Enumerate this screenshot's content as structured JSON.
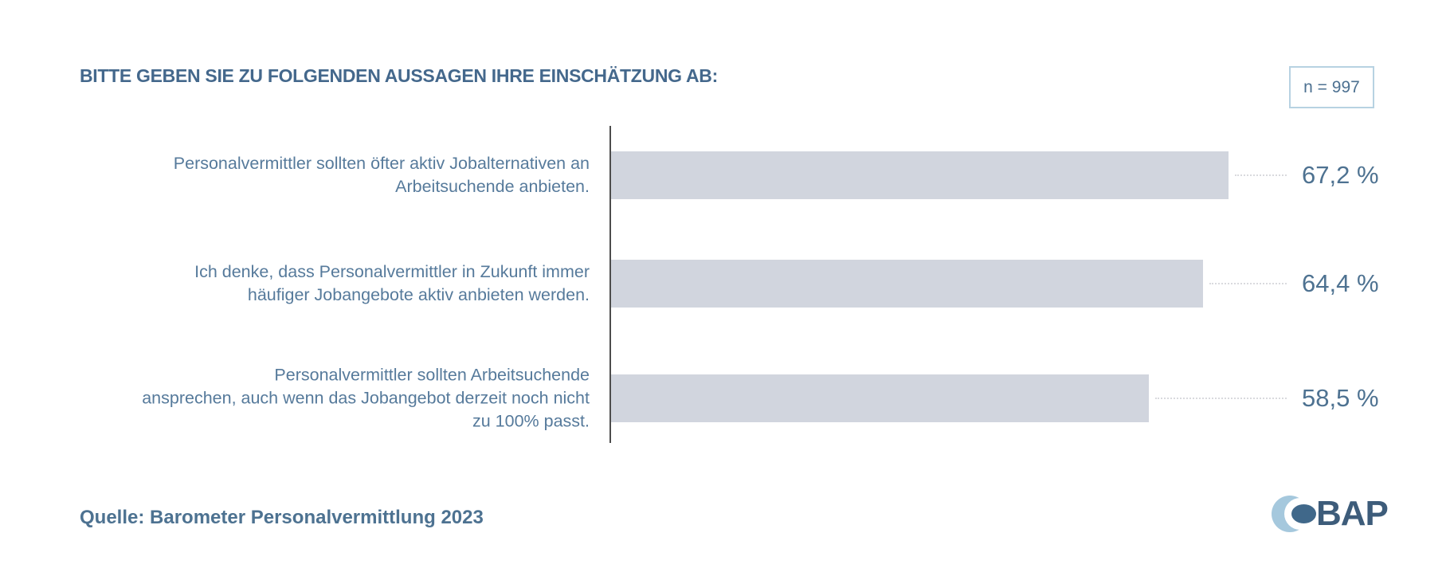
{
  "header": {
    "title": "BITTE GEBEN SIE ZU FOLGENDEN AUSSAGEN IHRE EINSCHÄTZUNG AB:",
    "sample_size": "n = 997"
  },
  "chart_data": {
    "type": "bar",
    "orientation": "horizontal",
    "title": "BITTE GEBEN SIE ZU FOLGENDEN AUSSAGEN IHRE EINSCHÄTZUNG AB:",
    "sample_size_note": "n = 997",
    "categories": [
      "Personalvermittler sollten öfter aktiv Jobalternativen an Arbeitsuchende anbieten.",
      "Ich denke, dass Personalvermittler in Zukunft immer häufiger Jobangebote aktiv anbieten werden.",
      "Personalvermittler sollten Arbeitsuchende ansprechen, auch wenn das Jobangebot derzeit noch nicht zu 100% passt."
    ],
    "label_lines": [
      [
        "Personalvermittler sollten öfter aktiv Jobalternativen an",
        "Arbeitsuchende anbieten."
      ],
      [
        "Ich denke, dass Personalvermittler in Zukunft immer",
        "häufiger Jobangebote aktiv anbieten werden."
      ],
      [
        "Personalvermittler sollten Arbeitsuchende",
        "ansprechen, auch wenn das Jobangebot derzeit noch nicht",
        "zu 100% passt."
      ]
    ],
    "values": [
      67.2,
      64.4,
      58.5
    ],
    "value_labels": [
      "67,2 %",
      "64,4 %",
      "58,5 %"
    ],
    "xlim": [
      0,
      100
    ],
    "grid": false,
    "legend": false,
    "bar_color": "#d1d5de"
  },
  "footer": {
    "source": "Quelle: Barometer Personalvermittlung 2023",
    "logo_text": "BAP"
  },
  "colors": {
    "title_text": "#44688c",
    "label_text": "#567a9b",
    "value_text": "#4e7291",
    "bar_fill": "#d1d5de",
    "axis_line": "#4d4d4d",
    "leader_dots": "#d9dade",
    "n_box_border": "#b7d2e2",
    "logo_light_blue": "#a5c8dd",
    "logo_dark_blue": "#40688a"
  }
}
